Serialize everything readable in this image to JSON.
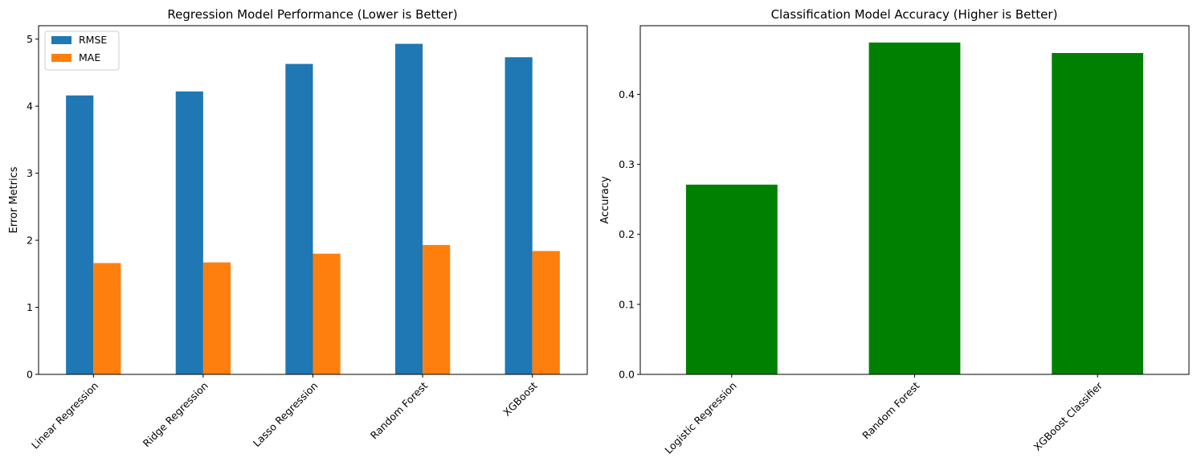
{
  "chart_data": [
    {
      "type": "bar",
      "title": "Regression Model Performance (Lower is Better)",
      "xlabel": "",
      "ylabel": "Error Metrics",
      "categories": [
        "Linear Regression",
        "Ridge Regression",
        "Lasso Regression",
        "Random Forest",
        "XGBoost"
      ],
      "series": [
        {
          "name": "RMSE",
          "color": "#1f77b4",
          "values": [
            4.16,
            4.22,
            4.63,
            4.93,
            4.73
          ]
        },
        {
          "name": "MAE",
          "color": "#ff7f0e",
          "values": [
            1.66,
            1.67,
            1.8,
            1.93,
            1.84
          ]
        }
      ],
      "ylim": [
        0,
        5.2
      ],
      "yticks": [
        "0",
        "1",
        "2",
        "3",
        "4",
        "5"
      ],
      "ytick_values": [
        0,
        1,
        2,
        3,
        4,
        5
      ],
      "legend": "top-left",
      "grid": false
    },
    {
      "type": "bar",
      "title": "Classification Model Accuracy (Higher is Better)",
      "xlabel": "",
      "ylabel": "Accuracy",
      "categories": [
        "Logistic Regression",
        "Random Forest",
        "XGBoost Classifier"
      ],
      "series": [
        {
          "color": "#008000",
          "values": [
            0.271,
            0.474,
            0.459
          ]
        }
      ],
      "ylim": [
        0,
        0.498
      ],
      "yticks": [
        "0.0",
        "0.1",
        "0.2",
        "0.3",
        "0.4"
      ],
      "ytick_values": [
        0,
        0.1,
        0.2,
        0.3,
        0.4
      ],
      "legend": "none",
      "grid": false
    }
  ]
}
